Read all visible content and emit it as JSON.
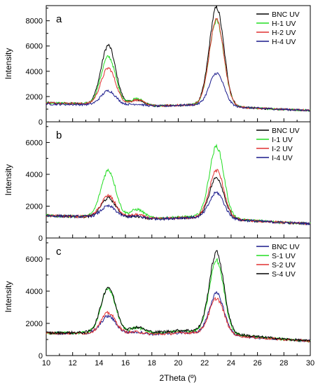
{
  "figure": {
    "xlabel": "2Theta (º)"
  },
  "chart_data": [
    {
      "type": "line",
      "panel_label": "a",
      "ylabel": "Intensity",
      "xlim": [
        10,
        30
      ],
      "ylim": [
        0,
        9200
      ],
      "xticks": [
        10,
        12,
        14,
        16,
        18,
        20,
        22,
        24,
        26,
        28,
        30
      ],
      "yticks": [
        0,
        2000,
        4000,
        6000,
        8000
      ],
      "legend_position": "top-right",
      "series": [
        {
          "name": "BNC UV",
          "color": "#000000",
          "peaks": {
            "baseline_start": 1500,
            "baseline_mid": 1200,
            "baseline_end": 900,
            "p1": 6050,
            "p2": 9050,
            "shoulder": 400
          }
        },
        {
          "name": "H-1 UV",
          "color": "#22dd22",
          "peaks": {
            "baseline_start": 1500,
            "baseline_mid": 1200,
            "baseline_end": 900,
            "p1": 5150,
            "p2": 8000,
            "shoulder": 500
          }
        },
        {
          "name": "H-2 UV",
          "color": "#e03030",
          "peaks": {
            "baseline_start": 1500,
            "baseline_mid": 1200,
            "baseline_end": 900,
            "p1": 4250,
            "p2": 8100,
            "shoulder": 400
          }
        },
        {
          "name": "H-4 UV",
          "color": "#1a1a8c",
          "peaks": {
            "baseline_start": 1400,
            "baseline_mid": 1200,
            "baseline_end": 900,
            "p1": 2450,
            "p2": 3850,
            "shoulder": 100
          }
        }
      ]
    },
    {
      "type": "line",
      "panel_label": "b",
      "ylabel": "Intensity",
      "xlim": [
        10,
        30
      ],
      "ylim": [
        0,
        7300
      ],
      "xticks": [
        10,
        12,
        14,
        16,
        18,
        20,
        22,
        24,
        26,
        28,
        30
      ],
      "yticks": [
        0,
        2000,
        4000,
        6000
      ],
      "legend_position": "top-right",
      "series": [
        {
          "name": "BNC UV",
          "color": "#000000",
          "peaks": {
            "baseline_start": 1400,
            "baseline_mid": 1150,
            "baseline_end": 900,
            "p1": 2500,
            "p2": 3800,
            "shoulder": 100
          }
        },
        {
          "name": "I-1 UV",
          "color": "#22dd22",
          "peaks": {
            "baseline_start": 1400,
            "baseline_mid": 1200,
            "baseline_end": 900,
            "p1": 4250,
            "p2": 5750,
            "shoulder": 500
          }
        },
        {
          "name": "I-2 UV",
          "color": "#e03030",
          "peaks": {
            "baseline_start": 1400,
            "baseline_mid": 1150,
            "baseline_end": 900,
            "p1": 2650,
            "p2": 4250,
            "shoulder": 200
          }
        },
        {
          "name": "I-4 UV",
          "color": "#1a1a8c",
          "peaks": {
            "baseline_start": 1400,
            "baseline_mid": 1150,
            "baseline_end": 900,
            "p1": 2000,
            "p2": 2850,
            "shoulder": 100
          }
        }
      ]
    },
    {
      "type": "line",
      "panel_label": "c",
      "ylabel": "Intensity",
      "xlim": [
        10,
        30
      ],
      "ylim": [
        0,
        7300
      ],
      "xticks": [
        10,
        12,
        14,
        16,
        18,
        20,
        22,
        24,
        26,
        28,
        30
      ],
      "yticks": [
        0,
        2000,
        4000,
        6000
      ],
      "legend_position": "top-right",
      "series": [
        {
          "name": "BNC UV",
          "color": "#1a1a8c",
          "peaks": {
            "baseline_start": 1400,
            "baseline_mid": 1300,
            "baseline_end": 900,
            "p1": 2450,
            "p2": 3850,
            "shoulder": 100
          }
        },
        {
          "name": "S-1 UV",
          "color": "#22dd22",
          "peaks": {
            "baseline_start": 1400,
            "baseline_mid": 1400,
            "baseline_end": 900,
            "p1": 4150,
            "p2": 5900,
            "shoulder": 300
          }
        },
        {
          "name": "S-2 UV",
          "color": "#e03030",
          "peaks": {
            "baseline_start": 1400,
            "baseline_mid": 1300,
            "baseline_end": 900,
            "p1": 2650,
            "p2": 3550,
            "shoulder": 100
          }
        },
        {
          "name": "S-4 UV",
          "color": "#000000",
          "peaks": {
            "baseline_start": 1400,
            "baseline_mid": 1450,
            "baseline_end": 900,
            "p1": 4250,
            "p2": 6400,
            "shoulder": 300
          }
        }
      ]
    }
  ]
}
